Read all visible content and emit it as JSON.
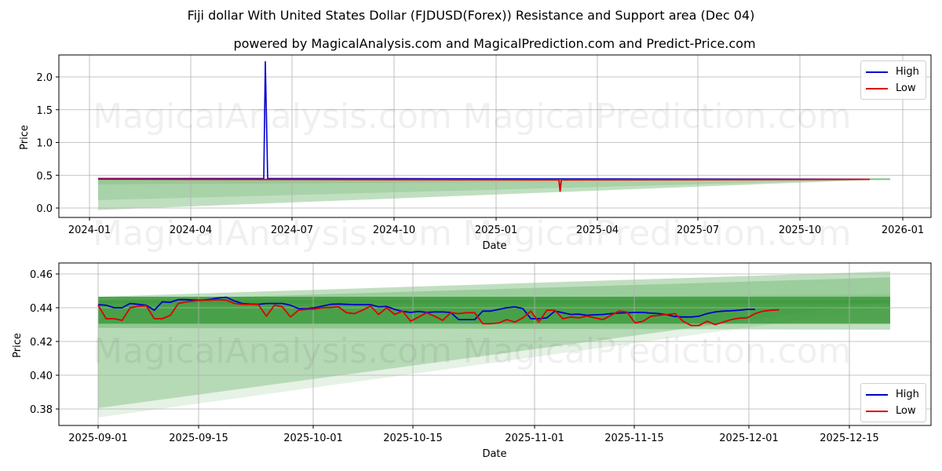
{
  "titles": {
    "main": "Fiji dollar With United States Dollar (FJDUSD(Forex)) Resistance and Support area (Dec 04)",
    "subtitle": "powered by MagicalAnalysis.com and MagicalPrediction.com and Predict-Price.com"
  },
  "watermarks": [
    "MagicalAnalysis.com",
    "MagicalPrediction.com"
  ],
  "colors": {
    "high": "#0000cc",
    "low": "#dd0000",
    "band": "#4aa24a",
    "grid": "#b0b0b0"
  },
  "legend": {
    "high": "High",
    "low": "Low"
  },
  "chart_data": [
    {
      "type": "line",
      "title": "Fiji dollar With United States Dollar (FJDUSD(Forex)) Resistance and Support area (Dec 04)",
      "xlabel": "Date",
      "ylabel": "Price",
      "x_ticks": [
        "2024-01",
        "2024-04",
        "2024-07",
        "2024-10",
        "2025-01",
        "2025-04",
        "2025-07",
        "2025-10",
        "2026-01"
      ],
      "y_ticks": [
        "0.0",
        "0.5",
        "1.0",
        "1.5",
        "2.0"
      ],
      "ylim": [
        -0.15,
        2.35
      ],
      "grid": true,
      "legend_position": "upper right",
      "series": [
        {
          "name": "High",
          "x": [
            "2024-01-08",
            "2024-06-10",
            "2024-06-12",
            "2024-06-14",
            "2025-12-03"
          ],
          "values": [
            0.45,
            0.45,
            2.24,
            0.45,
            0.44
          ]
        },
        {
          "name": "Low",
          "x": [
            "2024-01-08",
            "2025-02-28",
            "2025-03-01",
            "2025-03-03",
            "2025-12-03"
          ],
          "values": [
            0.44,
            0.43,
            0.25,
            0.43,
            0.437
          ]
        }
      ],
      "bands": {
        "name": "Support/Resistance area",
        "start": "2024-01-08",
        "end": "2025-12-22",
        "upper": 0.445,
        "lower_start": -0.03,
        "lower_end": 0.44
      }
    },
    {
      "type": "line",
      "xlabel": "Date",
      "ylabel": "Price",
      "x_ticks": [
        "2025-09-01",
        "2025-09-15",
        "2025-10-01",
        "2025-10-15",
        "2025-11-01",
        "2025-11-15",
        "2025-12-01",
        "2025-12-15"
      ],
      "y_ticks": [
        "0.38",
        "0.40",
        "0.42",
        "0.44",
        "0.46"
      ],
      "ylim": [
        0.37,
        0.466
      ],
      "grid": true,
      "legend_position": "lower right",
      "series": [
        {
          "name": "High",
          "values": [
            0.4418,
            0.4415,
            0.44,
            0.44,
            0.4425,
            0.442,
            0.4415,
            0.4385,
            0.4435,
            0.4432,
            0.4448,
            0.4448,
            0.4445,
            0.4445,
            0.445,
            0.4458,
            0.4462,
            0.444,
            0.4425,
            0.4422,
            0.442,
            0.4425,
            0.4425,
            0.4425,
            0.4415,
            0.4395,
            0.4395,
            0.44,
            0.441,
            0.442,
            0.4422,
            0.442,
            0.4418,
            0.4418,
            0.4418,
            0.4405,
            0.4408,
            0.439,
            0.4378,
            0.4372,
            0.4378,
            0.4372,
            0.4375,
            0.4375,
            0.4372,
            0.433,
            0.433,
            0.433,
            0.438,
            0.438,
            0.439,
            0.44,
            0.4405,
            0.4395,
            0.4335,
            0.4335,
            0.434,
            0.438,
            0.437,
            0.436,
            0.4362,
            0.4355,
            0.4358,
            0.436,
            0.4365,
            0.4368,
            0.437,
            0.4372,
            0.4372,
            0.4368,
            0.4365,
            0.4358,
            0.4348,
            0.4345,
            0.4345,
            0.435,
            0.4365,
            0.4375,
            0.438,
            0.4382,
            0.4385,
            0.439,
            0.439
          ]
        },
        {
          "name": "Low",
          "values": [
            0.4415,
            0.4335,
            0.4335,
            0.4325,
            0.44,
            0.4408,
            0.4412,
            0.4335,
            0.4335,
            0.4355,
            0.4425,
            0.4435,
            0.444,
            0.4445,
            0.4445,
            0.4448,
            0.4445,
            0.4425,
            0.442,
            0.442,
            0.4418,
            0.435,
            0.4415,
            0.4405,
            0.4345,
            0.4385,
            0.439,
            0.4392,
            0.44,
            0.4402,
            0.4405,
            0.437,
            0.4365,
            0.4385,
            0.441,
            0.436,
            0.44,
            0.436,
            0.438,
            0.432,
            0.4345,
            0.437,
            0.435,
            0.4325,
            0.437,
            0.4365,
            0.437,
            0.437,
            0.4305,
            0.4305,
            0.431,
            0.433,
            0.4315,
            0.434,
            0.438,
            0.4315,
            0.4385,
            0.4385,
            0.4335,
            0.4345,
            0.434,
            0.435,
            0.434,
            0.433,
            0.4355,
            0.438,
            0.4375,
            0.431,
            0.432,
            0.435,
            0.4355,
            0.436,
            0.4365,
            0.432,
            0.4295,
            0.4295,
            0.432,
            0.43,
            0.4315,
            0.433,
            0.4338,
            0.434,
            0.4365,
            0.438,
            0.4385,
            0.4388
          ]
        }
      ],
      "bands": [
        {
          "start": "2025-09-01",
          "end": "2025-12-22",
          "upper": [
            0.4465,
            0.4465
          ],
          "lower": [
            0.4305,
            0.4305
          ],
          "shade": "dark"
        },
        {
          "start": "2025-09-01",
          "end": "2025-12-22",
          "upper": [
            0.4465,
            0.4615
          ],
          "lower": [
            0.428,
            0.427
          ],
          "shade": "medium"
        },
        {
          "start": "2025-09-01",
          "end": "2025-12-22",
          "upper": [
            0.444,
            0.458
          ],
          "lower": [
            0.3805,
            0.444
          ],
          "shade": "light"
        },
        {
          "start": "2025-09-01",
          "end": "2025-12-22",
          "upper": [
            0.444,
            0.448
          ],
          "lower": [
            0.375,
            0.44
          ],
          "shade": "lightest"
        }
      ]
    }
  ]
}
